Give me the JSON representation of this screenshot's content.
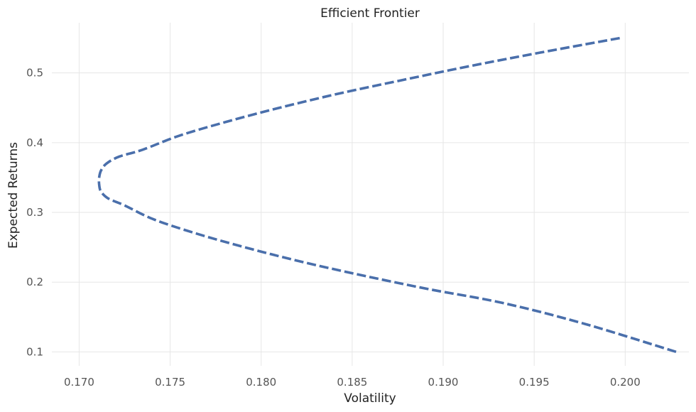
{
  "chart_data": {
    "type": "line",
    "title": "Efficient Frontier",
    "xlabel": "Volatility",
    "ylabel": "Expected Returns",
    "xlim": [
      0.1685,
      0.2035
    ],
    "ylim": [
      0.08,
      0.572
    ],
    "xticks": [
      "0.170",
      "0.175",
      "0.180",
      "0.185",
      "0.190",
      "0.195",
      "0.200"
    ],
    "yticks": [
      "0.1",
      "0.2",
      "0.3",
      "0.4",
      "0.5"
    ],
    "grid": true,
    "color": "#4a6fab",
    "series": [
      {
        "x": [
          0.1997,
          0.1955,
          0.1915,
          0.1878,
          0.1842,
          0.181,
          0.1781,
          0.1755,
          0.1735,
          0.1722,
          0.1715,
          0.1712,
          0.1711,
          0.1711,
          0.1712,
          0.1716,
          0.1725,
          0.1741,
          0.1764,
          0.1791,
          0.1821,
          0.1855,
          0.1892,
          0.1933,
          0.1978,
          0.2028
        ],
        "y": [
          0.55,
          0.53,
          0.51,
          0.49,
          0.47,
          0.45,
          0.43,
          0.41,
          0.39,
          0.38,
          0.37,
          0.36,
          0.35,
          0.34,
          0.33,
          0.32,
          0.31,
          0.29,
          0.27,
          0.25,
          0.23,
          0.21,
          0.19,
          0.17,
          0.14,
          0.1
        ]
      }
    ]
  }
}
